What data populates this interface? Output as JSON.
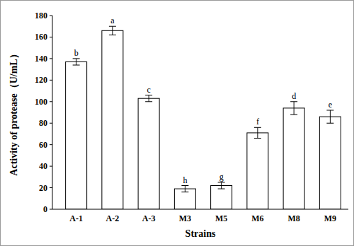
{
  "chart_data": {
    "type": "bar",
    "x_label": "Strains",
    "y_label": "Activity of protease（U/mL）",
    "categories": [
      "A-1",
      "A-2",
      "A-3",
      "M3",
      "M5",
      "M6",
      "M8",
      "M9"
    ],
    "values": [
      137,
      166,
      103,
      19,
      22,
      71,
      94,
      86
    ],
    "errors": [
      3,
      4,
      3,
      3,
      3,
      5,
      6,
      6
    ],
    "letters": [
      "b",
      "a",
      "c",
      "h",
      "g",
      "f",
      "d",
      "e"
    ],
    "color": "#ffffff",
    "ylim": [
      0,
      180
    ],
    "yticks": [
      0,
      20,
      40,
      60,
      80,
      100,
      120,
      140,
      160,
      180
    ],
    "grid": false
  }
}
